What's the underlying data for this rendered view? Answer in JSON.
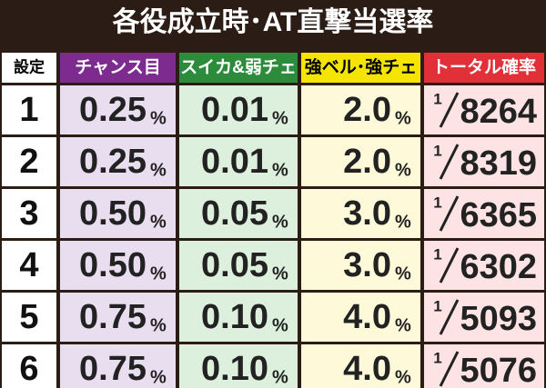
{
  "header": {
    "title": "各役成立時･AT直撃当選率"
  },
  "table": {
    "columns": [
      "設定",
      "チャンス目",
      "スイカ&弱チェ",
      "強ベル･強チェ",
      "トータル確率"
    ],
    "rows": [
      {
        "setting": "1",
        "cells": [
          {
            "value": "0.25",
            "unit": "%"
          },
          {
            "value": "0.01",
            "unit": "%"
          },
          {
            "value": "2.0",
            "unit": "%"
          }
        ],
        "total": {
          "numerator": "1",
          "denominator": "8264"
        }
      },
      {
        "setting": "2",
        "cells": [
          {
            "value": "0.25",
            "unit": "%"
          },
          {
            "value": "0.01",
            "unit": "%"
          },
          {
            "value": "2.0",
            "unit": "%"
          }
        ],
        "total": {
          "numerator": "1",
          "denominator": "8319"
        }
      },
      {
        "setting": "3",
        "cells": [
          {
            "value": "0.50",
            "unit": "%"
          },
          {
            "value": "0.05",
            "unit": "%"
          },
          {
            "value": "3.0",
            "unit": "%"
          }
        ],
        "total": {
          "numerator": "1",
          "denominator": "6365"
        }
      },
      {
        "setting": "4",
        "cells": [
          {
            "value": "0.50",
            "unit": "%"
          },
          {
            "value": "0.05",
            "unit": "%"
          },
          {
            "value": "3.0",
            "unit": "%"
          }
        ],
        "total": {
          "numerator": "1",
          "denominator": "6302"
        }
      },
      {
        "setting": "5",
        "cells": [
          {
            "value": "0.75",
            "unit": "%"
          },
          {
            "value": "0.10",
            "unit": "%"
          },
          {
            "value": "4.0",
            "unit": "%"
          }
        ],
        "total": {
          "numerator": "1",
          "denominator": "5093"
        }
      },
      {
        "setting": "6",
        "cells": [
          {
            "value": "0.75",
            "unit": "%"
          },
          {
            "value": "0.10",
            "unit": "%"
          },
          {
            "value": "4.0",
            "unit": "%"
          }
        ],
        "total": {
          "numerator": "1",
          "denominator": "5076"
        }
      }
    ]
  }
}
